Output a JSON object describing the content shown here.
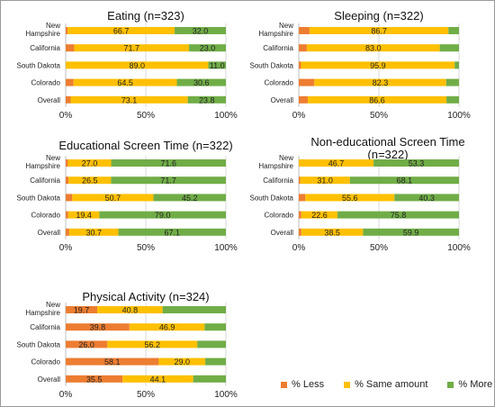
{
  "colors": {
    "less": "#ED7D31",
    "same": "#FFC000",
    "more": "#70AD47"
  },
  "legend": {
    "less": "% Less",
    "same": "% Same amount",
    "more": "% More"
  },
  "chart_data": [
    {
      "type": "bar",
      "orientation": "horizontal-stacked-percent",
      "title": "Eating (n=323)",
      "categories": [
        "New Hampshire",
        "California",
        "South Dakota",
        "Colorado",
        "Overall"
      ],
      "series": [
        {
          "name": "% Less",
          "values": [
            1.3,
            5.3,
            0.0,
            4.9,
            3.1
          ]
        },
        {
          "name": "% Same amount",
          "values": [
            66.7,
            71.7,
            89.0,
            64.5,
            73.1
          ]
        },
        {
          "name": "% More",
          "values": [
            32.0,
            23.0,
            11.0,
            30.6,
            23.8
          ]
        }
      ],
      "labels": [
        [
          "",
          "66.7",
          "32.0"
        ],
        [
          "",
          "71.7",
          "23.0"
        ],
        [
          "",
          "89.0",
          "11.0"
        ],
        [
          "",
          "64.5",
          "30.6"
        ],
        [
          "",
          "73.1",
          "23.8"
        ]
      ],
      "xticks": [
        "0%",
        "50%",
        "100%"
      ],
      "xlim": [
        0,
        100
      ]
    },
    {
      "type": "bar",
      "orientation": "horizontal-stacked-percent",
      "title": "Sleeping (n=322)",
      "categories": [
        "New Hampshire",
        "California",
        "South Dakota",
        "Colorado",
        "Overall"
      ],
      "series": [
        {
          "name": "% Less",
          "values": [
            6.7,
            5.0,
            1.4,
            9.7,
            5.6
          ]
        },
        {
          "name": "% Same amount",
          "values": [
            86.7,
            83.0,
            95.9,
            82.3,
            86.6
          ]
        },
        {
          "name": "% More",
          "values": [
            6.6,
            12.0,
            2.7,
            8.0,
            7.8
          ]
        }
      ],
      "labels": [
        [
          "",
          "86.7",
          ""
        ],
        [
          "",
          "83.0",
          ""
        ],
        [
          "",
          "95.9",
          ""
        ],
        [
          "",
          "82.3",
          ""
        ],
        [
          "",
          "86.6",
          ""
        ]
      ],
      "xticks": [
        "0%",
        "50%",
        "100%"
      ],
      "xlim": [
        0,
        100
      ]
    },
    {
      "type": "bar",
      "orientation": "horizontal-stacked-percent",
      "title": "Educational Screen Time (n=322)",
      "categories": [
        "New Hampshire",
        "California",
        "South Dakota",
        "Colorado",
        "Overall"
      ],
      "series": [
        {
          "name": "% Less",
          "values": [
            1.4,
            1.8,
            4.1,
            1.6,
            2.2
          ]
        },
        {
          "name": "% Same amount",
          "values": [
            27.0,
            26.5,
            50.7,
            19.4,
            30.7
          ]
        },
        {
          "name": "% More",
          "values": [
            71.6,
            71.7,
            45.2,
            79.0,
            67.1
          ]
        }
      ],
      "labels": [
        [
          "",
          "27.0",
          "71.6"
        ],
        [
          "",
          "26.5",
          "71.7"
        ],
        [
          "",
          "50.7",
          "45.2"
        ],
        [
          "",
          "19.4",
          "79.0"
        ],
        [
          "",
          "30.7",
          "67.1"
        ]
      ],
      "xticks": [
        "0%",
        "50%",
        "100%"
      ],
      "xlim": [
        0,
        100
      ]
    },
    {
      "type": "bar",
      "orientation": "horizontal-stacked-percent",
      "title": "Non-educational Screen Time (n=322)",
      "categories": [
        "New Hampshire",
        "California",
        "South Dakota",
        "Colorado",
        "Overall"
      ],
      "series": [
        {
          "name": "% Less",
          "values": [
            0.0,
            0.9,
            4.1,
            1.6,
            1.6
          ]
        },
        {
          "name": "% Same amount",
          "values": [
            46.7,
            31.0,
            55.6,
            22.6,
            38.5
          ]
        },
        {
          "name": "% More",
          "values": [
            53.3,
            68.1,
            40.3,
            75.8,
            59.9
          ]
        }
      ],
      "labels": [
        [
          "",
          "46.7",
          "53.3"
        ],
        [
          "",
          "31.0",
          "68.1"
        ],
        [
          "",
          "55.6",
          "40.3"
        ],
        [
          "",
          "22.6",
          "75.8"
        ],
        [
          "",
          "38.5",
          "59.9"
        ]
      ],
      "xticks": [
        "0%",
        "50%",
        "100%"
      ],
      "xlim": [
        0,
        100
      ]
    },
    {
      "type": "bar",
      "orientation": "horizontal-stacked-percent",
      "title": "Physical Activity (n=324)",
      "categories": [
        "New Hampshire",
        "California",
        "South Dakota",
        "Colorado",
        "Overall"
      ],
      "series": [
        {
          "name": "% Less",
          "values": [
            19.7,
            39.8,
            26.0,
            58.1,
            35.5
          ]
        },
        {
          "name": "% Same amount",
          "values": [
            40.8,
            46.9,
            56.2,
            29.0,
            44.1
          ]
        },
        {
          "name": "% More",
          "values": [
            39.5,
            13.3,
            17.8,
            12.9,
            20.4
          ]
        }
      ],
      "labels": [
        [
          "19.7",
          "40.8",
          ""
        ],
        [
          "39.8",
          "46.9",
          ""
        ],
        [
          "26.0",
          "56.2",
          ""
        ],
        [
          "58.1",
          "29.0",
          ""
        ],
        [
          "35.5",
          "44.1",
          ""
        ]
      ],
      "xticks": [
        "0%",
        "50%",
        "100%"
      ],
      "xlim": [
        0,
        100
      ]
    }
  ]
}
